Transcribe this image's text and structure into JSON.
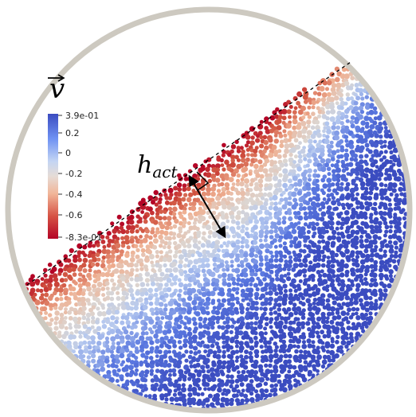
{
  "figure": {
    "colorbar": {
      "symbol": "v",
      "ticks": [
        "3.9e-01",
        "0.2",
        "0",
        "-0.2",
        "-0.4",
        "-0.6",
        "-8.3e-01"
      ],
      "max": 0.39,
      "min": -0.83,
      "colors": {
        "high": "#3b4cc0",
        "mid": "#dddddd",
        "low": "#b40426"
      }
    },
    "annotation": {
      "label_main": "h",
      "label_sub": "act"
    },
    "frame_color": "#cdc9c0"
  }
}
